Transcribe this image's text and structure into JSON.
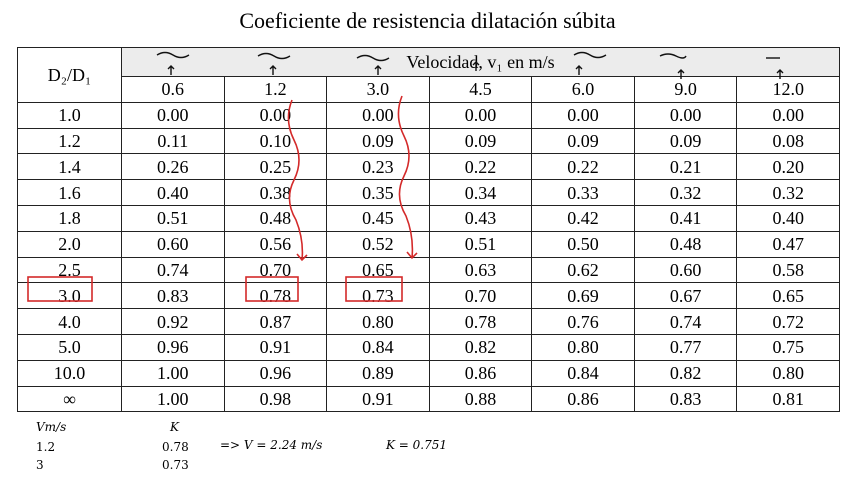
{
  "title": "Coeficiente de resistencia dilatación súbita",
  "table": {
    "corner_label": "D₂/D₁",
    "velocity_header": "Velocidad, v₁ en m/s",
    "velocities": [
      "0.6",
      "1.2",
      "3.0",
      "4.5",
      "6.0",
      "9.0",
      "12.0"
    ],
    "rows": [
      {
        "ratio": "1.0",
        "values": [
          "0.00",
          "0.00",
          "0.00",
          "0.00",
          "0.00",
          "0.00",
          "0.00"
        ]
      },
      {
        "ratio": "1.2",
        "values": [
          "0.11",
          "0.10",
          "0.09",
          "0.09",
          "0.09",
          "0.09",
          "0.08"
        ]
      },
      {
        "ratio": "1.4",
        "values": [
          "0.26",
          "0.25",
          "0.23",
          "0.22",
          "0.22",
          "0.21",
          "0.20"
        ]
      },
      {
        "ratio": "1.6",
        "values": [
          "0.40",
          "0.38",
          "0.35",
          "0.34",
          "0.33",
          "0.32",
          "0.32"
        ]
      },
      {
        "ratio": "1.8",
        "values": [
          "0.51",
          "0.48",
          "0.45",
          "0.43",
          "0.42",
          "0.41",
          "0.40"
        ]
      },
      {
        "ratio": "2.0",
        "values": [
          "0.60",
          "0.56",
          "0.52",
          "0.51",
          "0.50",
          "0.48",
          "0.47"
        ]
      },
      {
        "ratio": "2.5",
        "values": [
          "0.74",
          "0.70",
          "0.65",
          "0.63",
          "0.62",
          "0.60",
          "0.58"
        ]
      },
      {
        "ratio": "3.0",
        "values": [
          "0.83",
          "0.78",
          "0.73",
          "0.70",
          "0.69",
          "0.67",
          "0.65"
        ]
      },
      {
        "ratio": "4.0",
        "values": [
          "0.92",
          "0.87",
          "0.80",
          "0.78",
          "0.76",
          "0.74",
          "0.72"
        ]
      },
      {
        "ratio": "5.0",
        "values": [
          "0.96",
          "0.91",
          "0.84",
          "0.82",
          "0.80",
          "0.77",
          "0.75"
        ]
      },
      {
        "ratio": "10.0",
        "values": [
          "1.00",
          "0.96",
          "0.89",
          "0.86",
          "0.84",
          "0.82",
          "0.80"
        ]
      },
      {
        "ratio": "∞",
        "values": [
          "1.00",
          "0.98",
          "0.91",
          "0.88",
          "0.86",
          "0.83",
          "0.81"
        ]
      }
    ]
  },
  "notes": {
    "col_v": "Vm/s",
    "col_k": "K",
    "row1_v": "1.2",
    "row1_k": "0.78",
    "row2_v": "3",
    "row2_k": "0.73",
    "result": "=> V = 2.24 m/s",
    "k_result": "K = 0.751"
  },
  "colors": {
    "annotation_red": "#d42a2a",
    "header_gray": "#ececec",
    "border": "#222222"
  }
}
